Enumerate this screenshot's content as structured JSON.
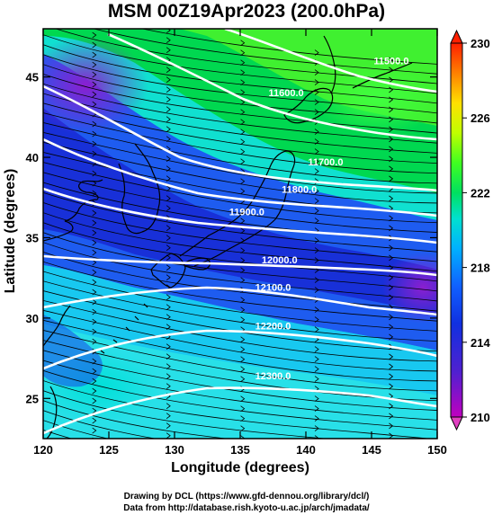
{
  "title": "MSM 00Z19Apr2023 (200.0hPa)",
  "xlabel": "Longitude (degrees)",
  "ylabel": "Latitude  (degrees)",
  "credits": [
    "Drawing by DCL (https://www.gfd-dennou.org/library/dcl/)",
    "Data from http://database.rish.kyoto-u.ac.jp/arch/jmadata/"
  ],
  "chart_data": {
    "type": "contour-map",
    "x_range": [
      120,
      150
    ],
    "y_range": [
      22.5,
      48
    ],
    "x_ticks": [
      120,
      125,
      130,
      135,
      140,
      145,
      150
    ],
    "y_ticks": [
      25,
      30,
      35,
      40,
      45
    ],
    "colorbar": {
      "ticks": [
        210,
        214,
        218,
        222,
        226,
        230
      ],
      "range": [
        210,
        230
      ],
      "colors": [
        "#c000c0",
        "#5020d0",
        "#1030e0",
        "#1060ff",
        "#00b0ff",
        "#00e0d0",
        "#00e060",
        "#40ff20",
        "#c0ff00",
        "#ffe000",
        "#ff8000",
        "#ff2000"
      ]
    },
    "contour_labels": [
      {
        "text": "11500.0",
        "lon": 146.5,
        "lat": 45.8
      },
      {
        "text": "11600.0",
        "lon": 138.5,
        "lat": 43.8
      },
      {
        "text": "11700.0",
        "lon": 141.5,
        "lat": 39.5
      },
      {
        "text": "11800.0",
        "lon": 139.5,
        "lat": 37.8
      },
      {
        "text": "11900.0",
        "lon": 135.5,
        "lat": 36.4
      },
      {
        "text": "12000.0",
        "lon": 138.0,
        "lat": 33.4
      },
      {
        "text": "12100.0",
        "lon": 137.5,
        "lat": 31.7
      },
      {
        "text": "12200.0",
        "lon": 137.5,
        "lat": 29.3
      },
      {
        "text": "12300.0",
        "lon": 137.5,
        "lat": 26.2
      }
    ]
  }
}
